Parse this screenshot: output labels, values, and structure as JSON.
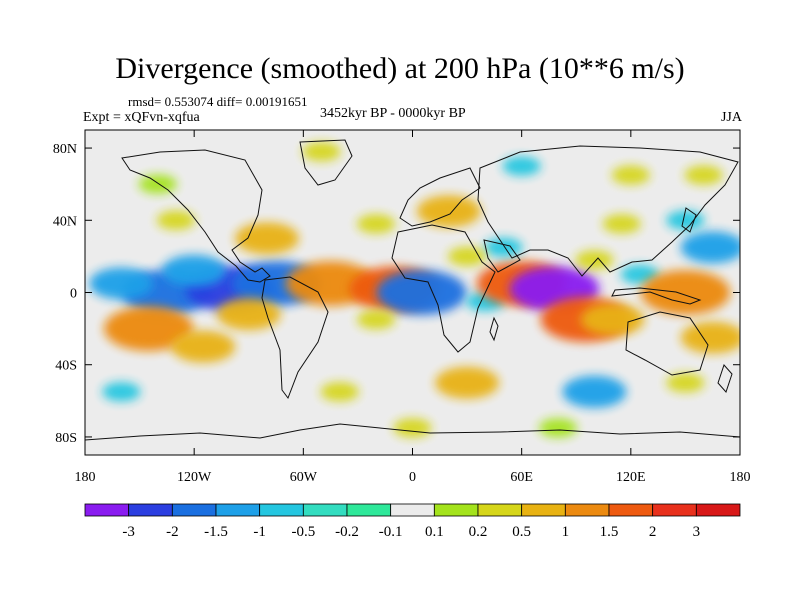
{
  "chart_data": {
    "type": "heatmap",
    "title": "Divergence (smoothed) at 200 hPa (10**6 m/s)",
    "stats_line": "rmsd= 0.553074 diff= 0.00191651",
    "left_label": "Expt = xQFvn-xqfua",
    "center_label": "3452kyr BP - 0000kyr BP",
    "right_label": "JJA",
    "xlim": [
      -180,
      180
    ],
    "ylim": [
      -90,
      90
    ],
    "x_ticks": [
      {
        "value": -180,
        "label": "180"
      },
      {
        "value": -120,
        "label": "120W"
      },
      {
        "value": -60,
        "label": "60W"
      },
      {
        "value": 0,
        "label": "0"
      },
      {
        "value": 60,
        "label": "60E"
      },
      {
        "value": 120,
        "label": "120E"
      },
      {
        "value": 180,
        "label": "180"
      }
    ],
    "y_ticks": [
      {
        "value": 80,
        "label": "80N"
      },
      {
        "value": 40,
        "label": "40N"
      },
      {
        "value": 0,
        "label": "0"
      },
      {
        "value": -40,
        "label": "40S"
      },
      {
        "value": -80,
        "label": "80S"
      }
    ],
    "colorbar": {
      "levels": [
        "-3",
        "-2",
        "-1.5",
        "-1",
        "-0.5",
        "-0.2",
        "-0.1",
        "0.1",
        "0.2",
        "0.5",
        "1",
        "1.5",
        "2",
        "3"
      ],
      "colors": [
        "#8a1cf0",
        "#2b3ee0",
        "#1a6fe0",
        "#1ea0e8",
        "#24c6e0",
        "#33ddc0",
        "#2ee89a",
        "#ececec",
        "#a4e31c",
        "#d6d61a",
        "#e8b212",
        "#ec8a10",
        "#ee5a10",
        "#e8301c",
        "#d81818"
      ]
    },
    "features": [
      {
        "lon": -135,
        "lat": 0,
        "value": -1.5
      },
      {
        "lon": -100,
        "lat": 2,
        "value": -2
      },
      {
        "lon": -75,
        "lat": 5,
        "value": -1.5
      },
      {
        "lon": -160,
        "lat": 5,
        "value": -1
      },
      {
        "lon": -120,
        "lat": 12,
        "value": -1
      },
      {
        "lon": -145,
        "lat": -20,
        "value": 1.5
      },
      {
        "lon": -115,
        "lat": -30,
        "value": 1
      },
      {
        "lon": -90,
        "lat": -12,
        "value": 1
      },
      {
        "lon": -45,
        "lat": 5,
        "value": 1.5
      },
      {
        "lon": -10,
        "lat": 2,
        "value": 2
      },
      {
        "lon": 5,
        "lat": 0,
        "value": -1.5
      },
      {
        "lon": -20,
        "lat": -15,
        "value": 0.5
      },
      {
        "lon": 40,
        "lat": -5,
        "value": -0.5
      },
      {
        "lon": 60,
        "lat": 5,
        "value": 2
      },
      {
        "lon": 78,
        "lat": 2,
        "value": -3
      },
      {
        "lon": 95,
        "lat": -15,
        "value": 2
      },
      {
        "lon": 110,
        "lat": -15,
        "value": 1
      },
      {
        "lon": 125,
        "lat": 10,
        "value": -0.5
      },
      {
        "lon": 150,
        "lat": 0,
        "value": 1.5
      },
      {
        "lon": 165,
        "lat": -25,
        "value": 1
      },
      {
        "lon": 165,
        "lat": 25,
        "value": -1
      },
      {
        "lon": 115,
        "lat": 38,
        "value": 0.5
      },
      {
        "lon": 100,
        "lat": 18,
        "value": 0.5
      },
      {
        "lon": 150,
        "lat": 40,
        "value": -0.5
      },
      {
        "lon": -130,
        "lat": 40,
        "value": 0.5
      },
      {
        "lon": -80,
        "lat": 30,
        "value": 1
      },
      {
        "lon": -20,
        "lat": 38,
        "value": 0.5
      },
      {
        "lon": 20,
        "lat": 45,
        "value": 1
      },
      {
        "lon": 50,
        "lat": 25,
        "value": -0.5
      },
      {
        "lon": 30,
        "lat": 20,
        "value": 0.5
      },
      {
        "lon": 120,
        "lat": 65,
        "value": 0.5
      },
      {
        "lon": 160,
        "lat": 65,
        "value": 0.5
      },
      {
        "lon": -140,
        "lat": 60,
        "value": 0.2
      },
      {
        "lon": 30,
        "lat": -50,
        "value": 1
      },
      {
        "lon": 100,
        "lat": -55,
        "value": -1
      },
      {
        "lon": -40,
        "lat": -55,
        "value": 0.5
      },
      {
        "lon": 150,
        "lat": -50,
        "value": 0.5
      },
      {
        "lon": -160,
        "lat": -55,
        "value": -0.5
      },
      {
        "lon": 0,
        "lat": -75,
        "value": 0.5
      },
      {
        "lon": 80,
        "lat": -75,
        "value": 0.2
      },
      {
        "lon": -50,
        "lat": 78,
        "value": 0.5
      },
      {
        "lon": 60,
        "lat": 70,
        "value": -0.5
      }
    ]
  }
}
